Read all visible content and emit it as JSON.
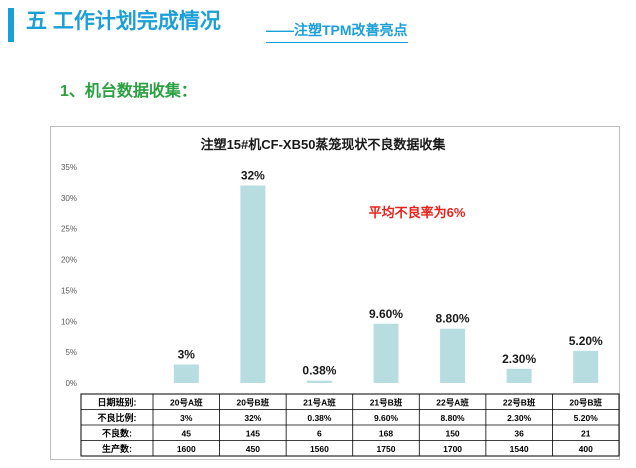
{
  "header": {
    "title": "五 工作计划完成情况",
    "subtitle": "——注塑TPM改善亮点"
  },
  "section": {
    "heading": "1、机台数据收集："
  },
  "chart_data": {
    "type": "bar",
    "title": "注塑15#机CF-XB50蒸笼现状不良数据收集",
    "annotation": "平均不良率为6%",
    "categories": [
      "20号A班",
      "20号B班",
      "21号A班",
      "21号B班",
      "22号A班",
      "22号B班",
      "20号B班"
    ],
    "values": [
      3,
      32,
      0.38,
      9.6,
      8.8,
      2.3,
      5.2
    ],
    "data_labels": [
      "3%",
      "32%",
      "0.38%",
      "9.60%",
      "8.80%",
      "2.30%",
      "5.20%"
    ],
    "y_ticks": [
      "0%",
      "5%",
      "10%",
      "15%",
      "20%",
      "25%",
      "30%",
      "35%"
    ],
    "ylim": [
      0,
      35
    ],
    "grid": false,
    "bar_color": "#b7dde0",
    "annotation_color": "#e8221c",
    "table": {
      "row_headers": [
        "日期班别:",
        "不良比例:",
        "不良数:",
        "生产数:"
      ],
      "rows": [
        [
          "20号A班",
          "20号B班",
          "21号A班",
          "21号B班",
          "22号A班",
          "22号B班",
          "20号B班"
        ],
        [
          "3%",
          "32%",
          "0.38%",
          "9.60%",
          "8.80%",
          "2.30%",
          "5.20%"
        ],
        [
          "45",
          "145",
          "6",
          "168",
          "150",
          "36",
          "21"
        ],
        [
          "1600",
          "450",
          "1560",
          "1750",
          "1700",
          "1540",
          "400"
        ]
      ]
    }
  }
}
